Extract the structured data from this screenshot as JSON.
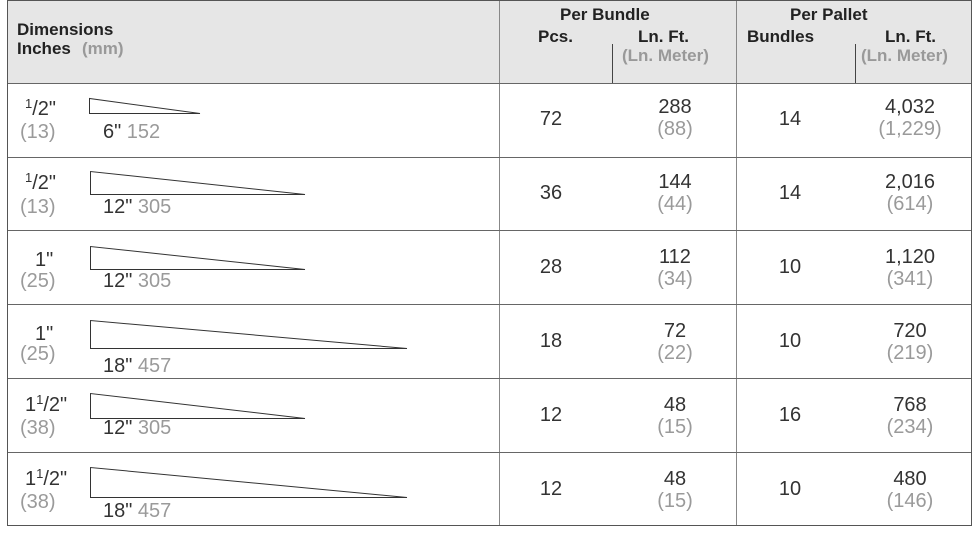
{
  "header": {
    "dimensions_label": "Dimensions",
    "inches_label": "Inches",
    "mm_label": "(mm)",
    "per_bundle": "Per Bundle",
    "per_pallet": "Per Pallet",
    "pcs": "Pcs.",
    "ln_ft": "Ln. Ft.",
    "ln_meter": "(Ln. Meter)",
    "bundles": "Bundles",
    "ln_ft_2": "Ln. Ft.",
    "ln_meter_2": "(Ln. Meter)"
  },
  "rows": [
    {
      "size_whole": "",
      "size_frac_num": "1",
      "size_frac_den": "/2\"",
      "size_mm": "(13)",
      "length_in": "6\"",
      "length_mm": "152",
      "pcs": "72",
      "bundle_lnft": "288",
      "bundle_lnm": "(88)",
      "bundles": "14",
      "pallet_lnft": "4,032",
      "pallet_lnm": "(1,229)"
    },
    {
      "size_whole": "",
      "size_frac_num": "1",
      "size_frac_den": "/2\"",
      "size_mm": "(13)",
      "length_in": "12\"",
      "length_mm": "305",
      "pcs": "36",
      "bundle_lnft": "144",
      "bundle_lnm": "(44)",
      "bundles": "14",
      "pallet_lnft": "2,016",
      "pallet_lnm": "(614)"
    },
    {
      "size_whole": "1\"",
      "size_frac_num": "",
      "size_frac_den": "",
      "size_mm": "(25)",
      "length_in": "12\"",
      "length_mm": "305",
      "pcs": "28",
      "bundle_lnft": "112",
      "bundle_lnm": "(34)",
      "bundles": "10",
      "pallet_lnft": "1,120",
      "pallet_lnm": "(341)"
    },
    {
      "size_whole": "1\"",
      "size_frac_num": "",
      "size_frac_den": "",
      "size_mm": "(25)",
      "length_in": "18\"",
      "length_mm": "457",
      "pcs": "18",
      "bundle_lnft": "72",
      "bundle_lnm": "(22)",
      "bundles": "10",
      "pallet_lnft": "720",
      "pallet_lnm": "(219)"
    },
    {
      "size_whole": "1",
      "size_frac_num": "1",
      "size_frac_den": "/2\"",
      "size_mm": "(38)",
      "length_in": "12\"",
      "length_mm": "305",
      "pcs": "12",
      "bundle_lnft": "48",
      "bundle_lnm": "(15)",
      "bundles": "16",
      "pallet_lnft": "768",
      "pallet_lnm": "(234)"
    },
    {
      "size_whole": "1",
      "size_frac_num": "1",
      "size_frac_den": "/2\"",
      "size_mm": "(38)",
      "length_in": "18\"",
      "length_mm": "457",
      "pcs": "12",
      "bundle_lnft": "48",
      "bundle_lnm": "(15)",
      "bundles": "10",
      "pallet_lnft": "480",
      "pallet_lnm": "(146)"
    }
  ]
}
